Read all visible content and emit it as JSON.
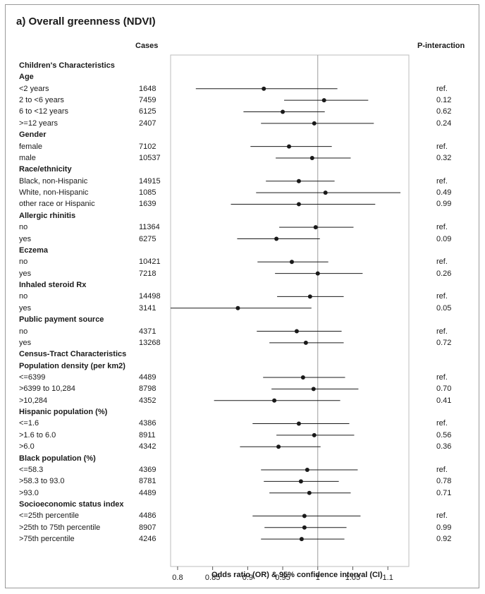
{
  "title": "a) Overall greenness (NDVI)",
  "header": {
    "cases": "Cases",
    "p_interaction": "P-interaction"
  },
  "chart_data": {
    "type": "forest",
    "title": "a) Overall greenness (NDVI)",
    "xlabel": "Odds ratio (OR) & 95% confidence interval (CI)",
    "xlim": [
      0.79,
      1.13
    ],
    "xticks": [
      0.8,
      0.85,
      0.9,
      0.95,
      1,
      1.05,
      1.1
    ],
    "reference_line": 1,
    "rows": [
      {
        "kind": "group",
        "label": "Children's Characteristics"
      },
      {
        "kind": "subgroup",
        "label": "Age"
      },
      {
        "kind": "item",
        "label": "<2 years",
        "cases": "1648",
        "or": 0.923,
        "lo": 0.826,
        "hi": 1.028,
        "p": "ref."
      },
      {
        "kind": "item",
        "label": "2 to <6 years",
        "cases": "7459",
        "or": 1.009,
        "lo": 0.952,
        "hi": 1.072,
        "p": "0.12"
      },
      {
        "kind": "item",
        "label": "6 to <12 years",
        "cases": "6125",
        "or": 0.95,
        "lo": 0.894,
        "hi": 1.01,
        "p": "0.62"
      },
      {
        "kind": "item",
        "label": ">=12 years",
        "cases": "2407",
        "or": 0.995,
        "lo": 0.919,
        "hi": 1.08,
        "p": "0.24"
      },
      {
        "kind": "subgroup",
        "label": "Gender"
      },
      {
        "kind": "item",
        "label": "female",
        "cases": "7102",
        "or": 0.959,
        "lo": 0.904,
        "hi": 1.02,
        "p": "ref."
      },
      {
        "kind": "item",
        "label": "male",
        "cases": "10537",
        "or": 0.992,
        "lo": 0.94,
        "hi": 1.047,
        "p": "0.32"
      },
      {
        "kind": "subgroup",
        "label": "Race/ethnicity"
      },
      {
        "kind": "item",
        "label": "Black, non-Hispanic",
        "cases": "14915",
        "or": 0.973,
        "lo": 0.926,
        "hi": 1.024,
        "p": "ref."
      },
      {
        "kind": "item",
        "label": "White, non-Hispanic",
        "cases": "1085",
        "or": 1.011,
        "lo": 0.912,
        "hi": 1.118,
        "p": "0.49"
      },
      {
        "kind": "item",
        "label": "other race or Hispanic",
        "cases": "1639",
        "or": 0.973,
        "lo": 0.876,
        "hi": 1.082,
        "p": "0.99"
      },
      {
        "kind": "subgroup",
        "label": "Allergic rhinitis"
      },
      {
        "kind": "item",
        "label": "no",
        "cases": "11364",
        "or": 0.997,
        "lo": 0.945,
        "hi": 1.051,
        "p": "ref."
      },
      {
        "kind": "item",
        "label": "yes",
        "cases": "6275",
        "or": 0.941,
        "lo": 0.885,
        "hi": 1.003,
        "p": "0.09"
      },
      {
        "kind": "subgroup",
        "label": "Eczema"
      },
      {
        "kind": "item",
        "label": "no",
        "cases": "10421",
        "or": 0.963,
        "lo": 0.914,
        "hi": 1.015,
        "p": "ref."
      },
      {
        "kind": "item",
        "label": "yes",
        "cases": "7218",
        "or": 1.0,
        "lo": 0.939,
        "hi": 1.064,
        "p": "0.26"
      },
      {
        "kind": "subgroup",
        "label": "Inhaled steroid Rx"
      },
      {
        "kind": "item",
        "label": "no",
        "cases": "14498",
        "or": 0.989,
        "lo": 0.942,
        "hi": 1.037,
        "p": "ref."
      },
      {
        "kind": "item",
        "label": "yes",
        "cases": "3141",
        "or": 0.886,
        "lo": 0.79,
        "hi": 0.991,
        "p": "0.05"
      },
      {
        "kind": "subgroup",
        "label": "Public payment source"
      },
      {
        "kind": "item",
        "label": "no",
        "cases": "4371",
        "or": 0.97,
        "lo": 0.913,
        "hi": 1.034,
        "p": "ref."
      },
      {
        "kind": "item",
        "label": "yes",
        "cases": "13268",
        "or": 0.983,
        "lo": 0.931,
        "hi": 1.037,
        "p": "0.72"
      },
      {
        "kind": "group",
        "label": "Census-Tract Characteristics"
      },
      {
        "kind": "subgroup",
        "label": "Population density (per km2)"
      },
      {
        "kind": "item",
        "label": "<=6399",
        "cases": "4489",
        "or": 0.979,
        "lo": 0.922,
        "hi": 1.039,
        "p": "ref."
      },
      {
        "kind": "item",
        "label": ">6399 to 10,284",
        "cases": "8798",
        "or": 0.994,
        "lo": 0.934,
        "hi": 1.058,
        "p": "0.70"
      },
      {
        "kind": "item",
        "label": ">10,284",
        "cases": "4352",
        "or": 0.938,
        "lo": 0.852,
        "hi": 1.032,
        "p": "0.41"
      },
      {
        "kind": "subgroup",
        "label": "Hispanic population (%)"
      },
      {
        "kind": "item",
        "label": "<=1.6",
        "cases": "4386",
        "or": 0.973,
        "lo": 0.907,
        "hi": 1.045,
        "p": "ref."
      },
      {
        "kind": "item",
        "label": ">1.6 to 6.0",
        "cases": "8911",
        "or": 0.995,
        "lo": 0.941,
        "hi": 1.052,
        "p": "0.56"
      },
      {
        "kind": "item",
        "label": ">6.0",
        "cases": "4342",
        "or": 0.944,
        "lo": 0.889,
        "hi": 1.004,
        "p": "0.36"
      },
      {
        "kind": "subgroup",
        "label": "Black population (%)"
      },
      {
        "kind": "item",
        "label": "<=58.3",
        "cases": "4369",
        "or": 0.985,
        "lo": 0.919,
        "hi": 1.057,
        "p": "ref."
      },
      {
        "kind": "item",
        "label": ">58.3 to 93.0",
        "cases": "8781",
        "or": 0.976,
        "lo": 0.923,
        "hi": 1.03,
        "p": "0.78"
      },
      {
        "kind": "item",
        "label": ">93.0",
        "cases": "4489",
        "or": 0.988,
        "lo": 0.931,
        "hi": 1.047,
        "p": "0.71"
      },
      {
        "kind": "subgroup",
        "label": "Socioeconomic status index"
      },
      {
        "kind": "item",
        "label": "<=25th percentile",
        "cases": "4486",
        "or": 0.981,
        "lo": 0.907,
        "hi": 1.061,
        "p": "ref."
      },
      {
        "kind": "item",
        "label": ">25th to 75th percentile",
        "cases": "8907",
        "or": 0.981,
        "lo": 0.924,
        "hi": 1.041,
        "p": "0.99"
      },
      {
        "kind": "item",
        "label": ">75th percentile",
        "cases": "4246",
        "or": 0.977,
        "lo": 0.919,
        "hi": 1.038,
        "p": "0.92"
      }
    ]
  }
}
